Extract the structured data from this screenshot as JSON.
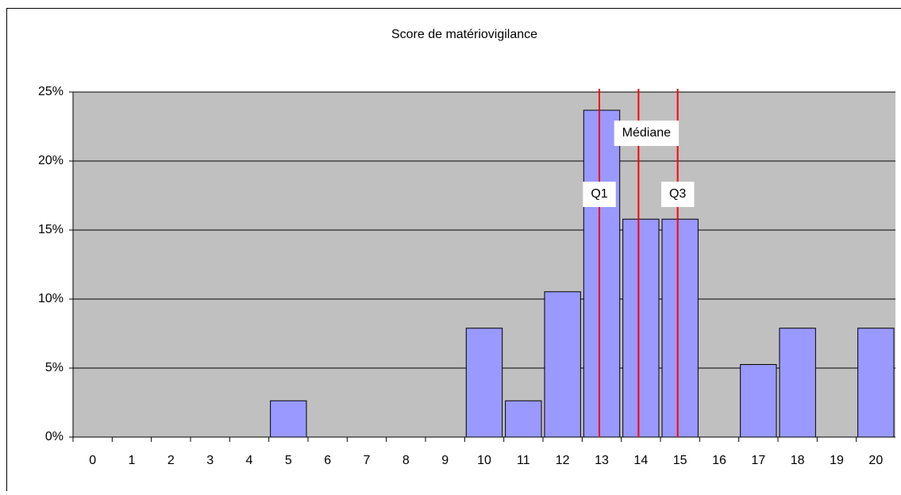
{
  "chart_data": {
    "type": "bar",
    "title": "Score de matériovigilance",
    "categories": [
      "0",
      "1",
      "2",
      "3",
      "4",
      "5",
      "6",
      "7",
      "8",
      "9",
      "10",
      "11",
      "12",
      "13",
      "14",
      "15",
      "16",
      "17",
      "18",
      "19",
      "20"
    ],
    "values": [
      0,
      0,
      0,
      0,
      0,
      2.63,
      0,
      0,
      0,
      0,
      7.89,
      2.63,
      10.53,
      23.68,
      15.79,
      15.79,
      0,
      5.26,
      7.89,
      0,
      7.89
    ],
    "color": "#9999ff",
    "ylim": [
      0,
      25
    ],
    "yticks": [
      {
        "value": 0,
        "label": "0%"
      },
      {
        "value": 5,
        "label": "5%"
      },
      {
        "value": 10,
        "label": "10%"
      },
      {
        "value": 15,
        "label": "15%"
      },
      {
        "value": 20,
        "label": "20%"
      },
      {
        "value": 25,
        "label": "25%"
      }
    ],
    "grid": true,
    "annotations": [
      {
        "label": "Q1",
        "x": 13
      },
      {
        "label": "Médiane",
        "x": 14
      },
      {
        "label": "Q3",
        "x": 15
      }
    ],
    "annotation_color": "#ff0000"
  }
}
